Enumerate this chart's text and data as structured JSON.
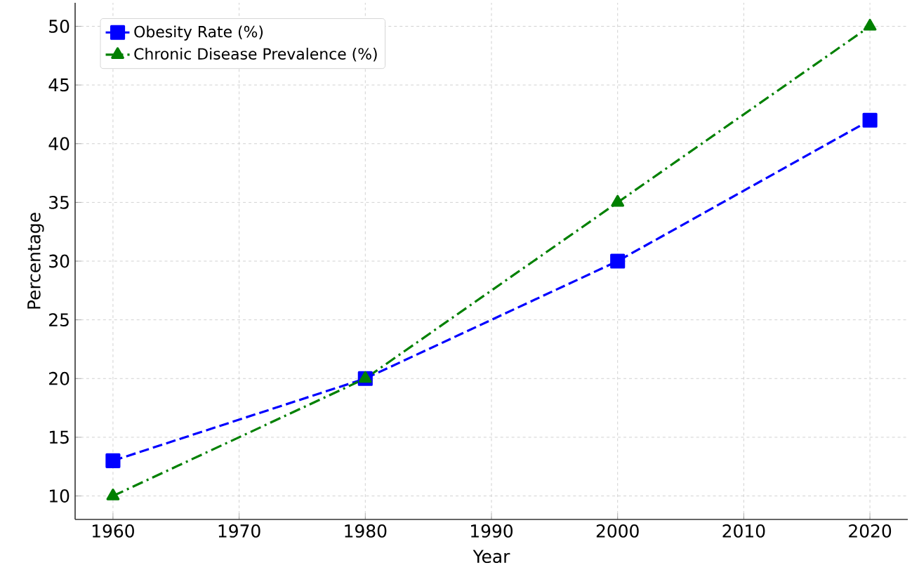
{
  "chart_data": {
    "type": "line",
    "xlabel": "Year",
    "ylabel": "Percentage",
    "x": [
      1960,
      1980,
      2000,
      2020
    ],
    "series": [
      {
        "name": "Obesity Rate (%)",
        "color": "#0000ff",
        "values": [
          13,
          20,
          30,
          42
        ],
        "marker": "square",
        "line_style": "dashed"
      },
      {
        "name": "Chronic Disease Prevalence (%)",
        "color": "#008000",
        "values": [
          10,
          20,
          35,
          50
        ],
        "marker": "triangle",
        "line_style": "dashdot"
      }
    ],
    "xlim": [
      1957,
      2023
    ],
    "ylim": [
      8,
      52
    ],
    "xticks": [
      1960,
      1970,
      1980,
      1990,
      2000,
      2010,
      2020
    ],
    "yticks": [
      10,
      15,
      20,
      25,
      30,
      35,
      40,
      45,
      50
    ],
    "grid": true,
    "legend": "top left"
  }
}
